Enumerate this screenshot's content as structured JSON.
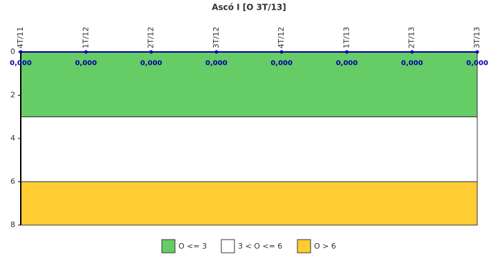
{
  "chart_data": {
    "type": "line",
    "title": "Ascó I [O 3T/13]",
    "categories": [
      "4T/11",
      "1T/12",
      "2T/12",
      "3T/12",
      "4T/12",
      "1T/13",
      "2T/13",
      "3T/13"
    ],
    "values": [
      0,
      0,
      0,
      0,
      0,
      0,
      0,
      0
    ],
    "value_labels": [
      "0,000",
      "0,000",
      "0,000",
      "0,000",
      "0,000",
      "0,000",
      "0,000",
      "0,000"
    ],
    "color": "#000099",
    "ylim": [
      0,
      8
    ],
    "y_inverted": true,
    "yticks": [
      0,
      2,
      4,
      6,
      8
    ],
    "bands": [
      {
        "name": "O <= 3",
        "from": 0,
        "to": 3,
        "color": "#66cc66"
      },
      {
        "name": "3 < O <= 6",
        "from": 3,
        "to": 6,
        "color": "#ffffff"
      },
      {
        "name": "O > 6",
        "from": 6,
        "to": 8,
        "color": "#ffcc33"
      }
    ]
  }
}
